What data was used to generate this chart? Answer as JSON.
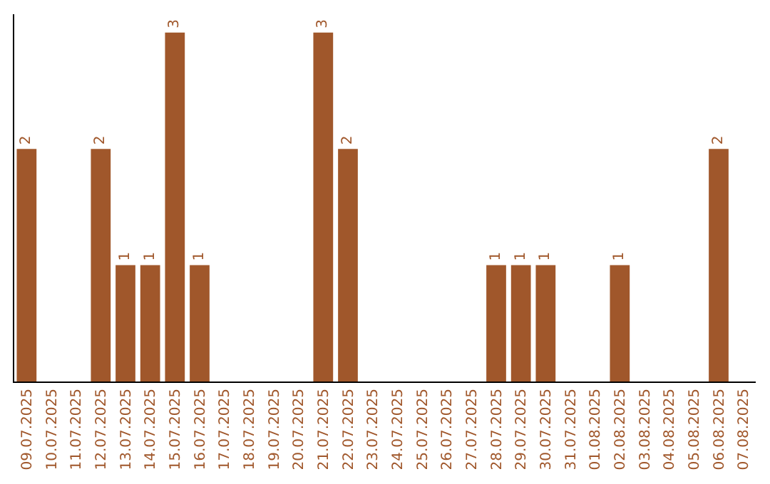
{
  "chart_data": {
    "type": "bar",
    "categories": [
      "09.07.2025",
      "10.07.2025",
      "11.07.2025",
      "12.07.2025",
      "13.07.2025",
      "14.07.2025",
      "15.07.2025",
      "16.07.2025",
      "17.07.2025",
      "18.07.2025",
      "19.07.2025",
      "20.07.2025",
      "21.07.2025",
      "22.07.2025",
      "23.07.2025",
      "24.07.2025",
      "25.07.2025",
      "26.07.2025",
      "27.07.2025",
      "28.07.2025",
      "29.07.2025",
      "30.07.2025",
      "31.07.2025",
      "01.08.2025",
      "02.08.2025",
      "03.08.2025",
      "04.08.2025",
      "05.08.2025",
      "06.08.2025",
      "07.08.2025"
    ],
    "values": [
      2,
      0,
      0,
      2,
      1,
      1,
      3,
      1,
      0,
      0,
      0,
      0,
      3,
      2,
      0,
      0,
      0,
      0,
      0,
      1,
      1,
      1,
      0,
      0,
      1,
      0,
      0,
      0,
      2,
      0
    ],
    "value_labels": [
      "2",
      null,
      null,
      "2",
      "1",
      "1",
      "3",
      "1",
      null,
      null,
      null,
      null,
      "3",
      "2",
      null,
      null,
      null,
      null,
      null,
      "1",
      "1",
      "1",
      null,
      null,
      "1",
      null,
      null,
      null,
      "2",
      null
    ],
    "color": "#a0572b",
    "grid": false,
    "legend": false
  }
}
